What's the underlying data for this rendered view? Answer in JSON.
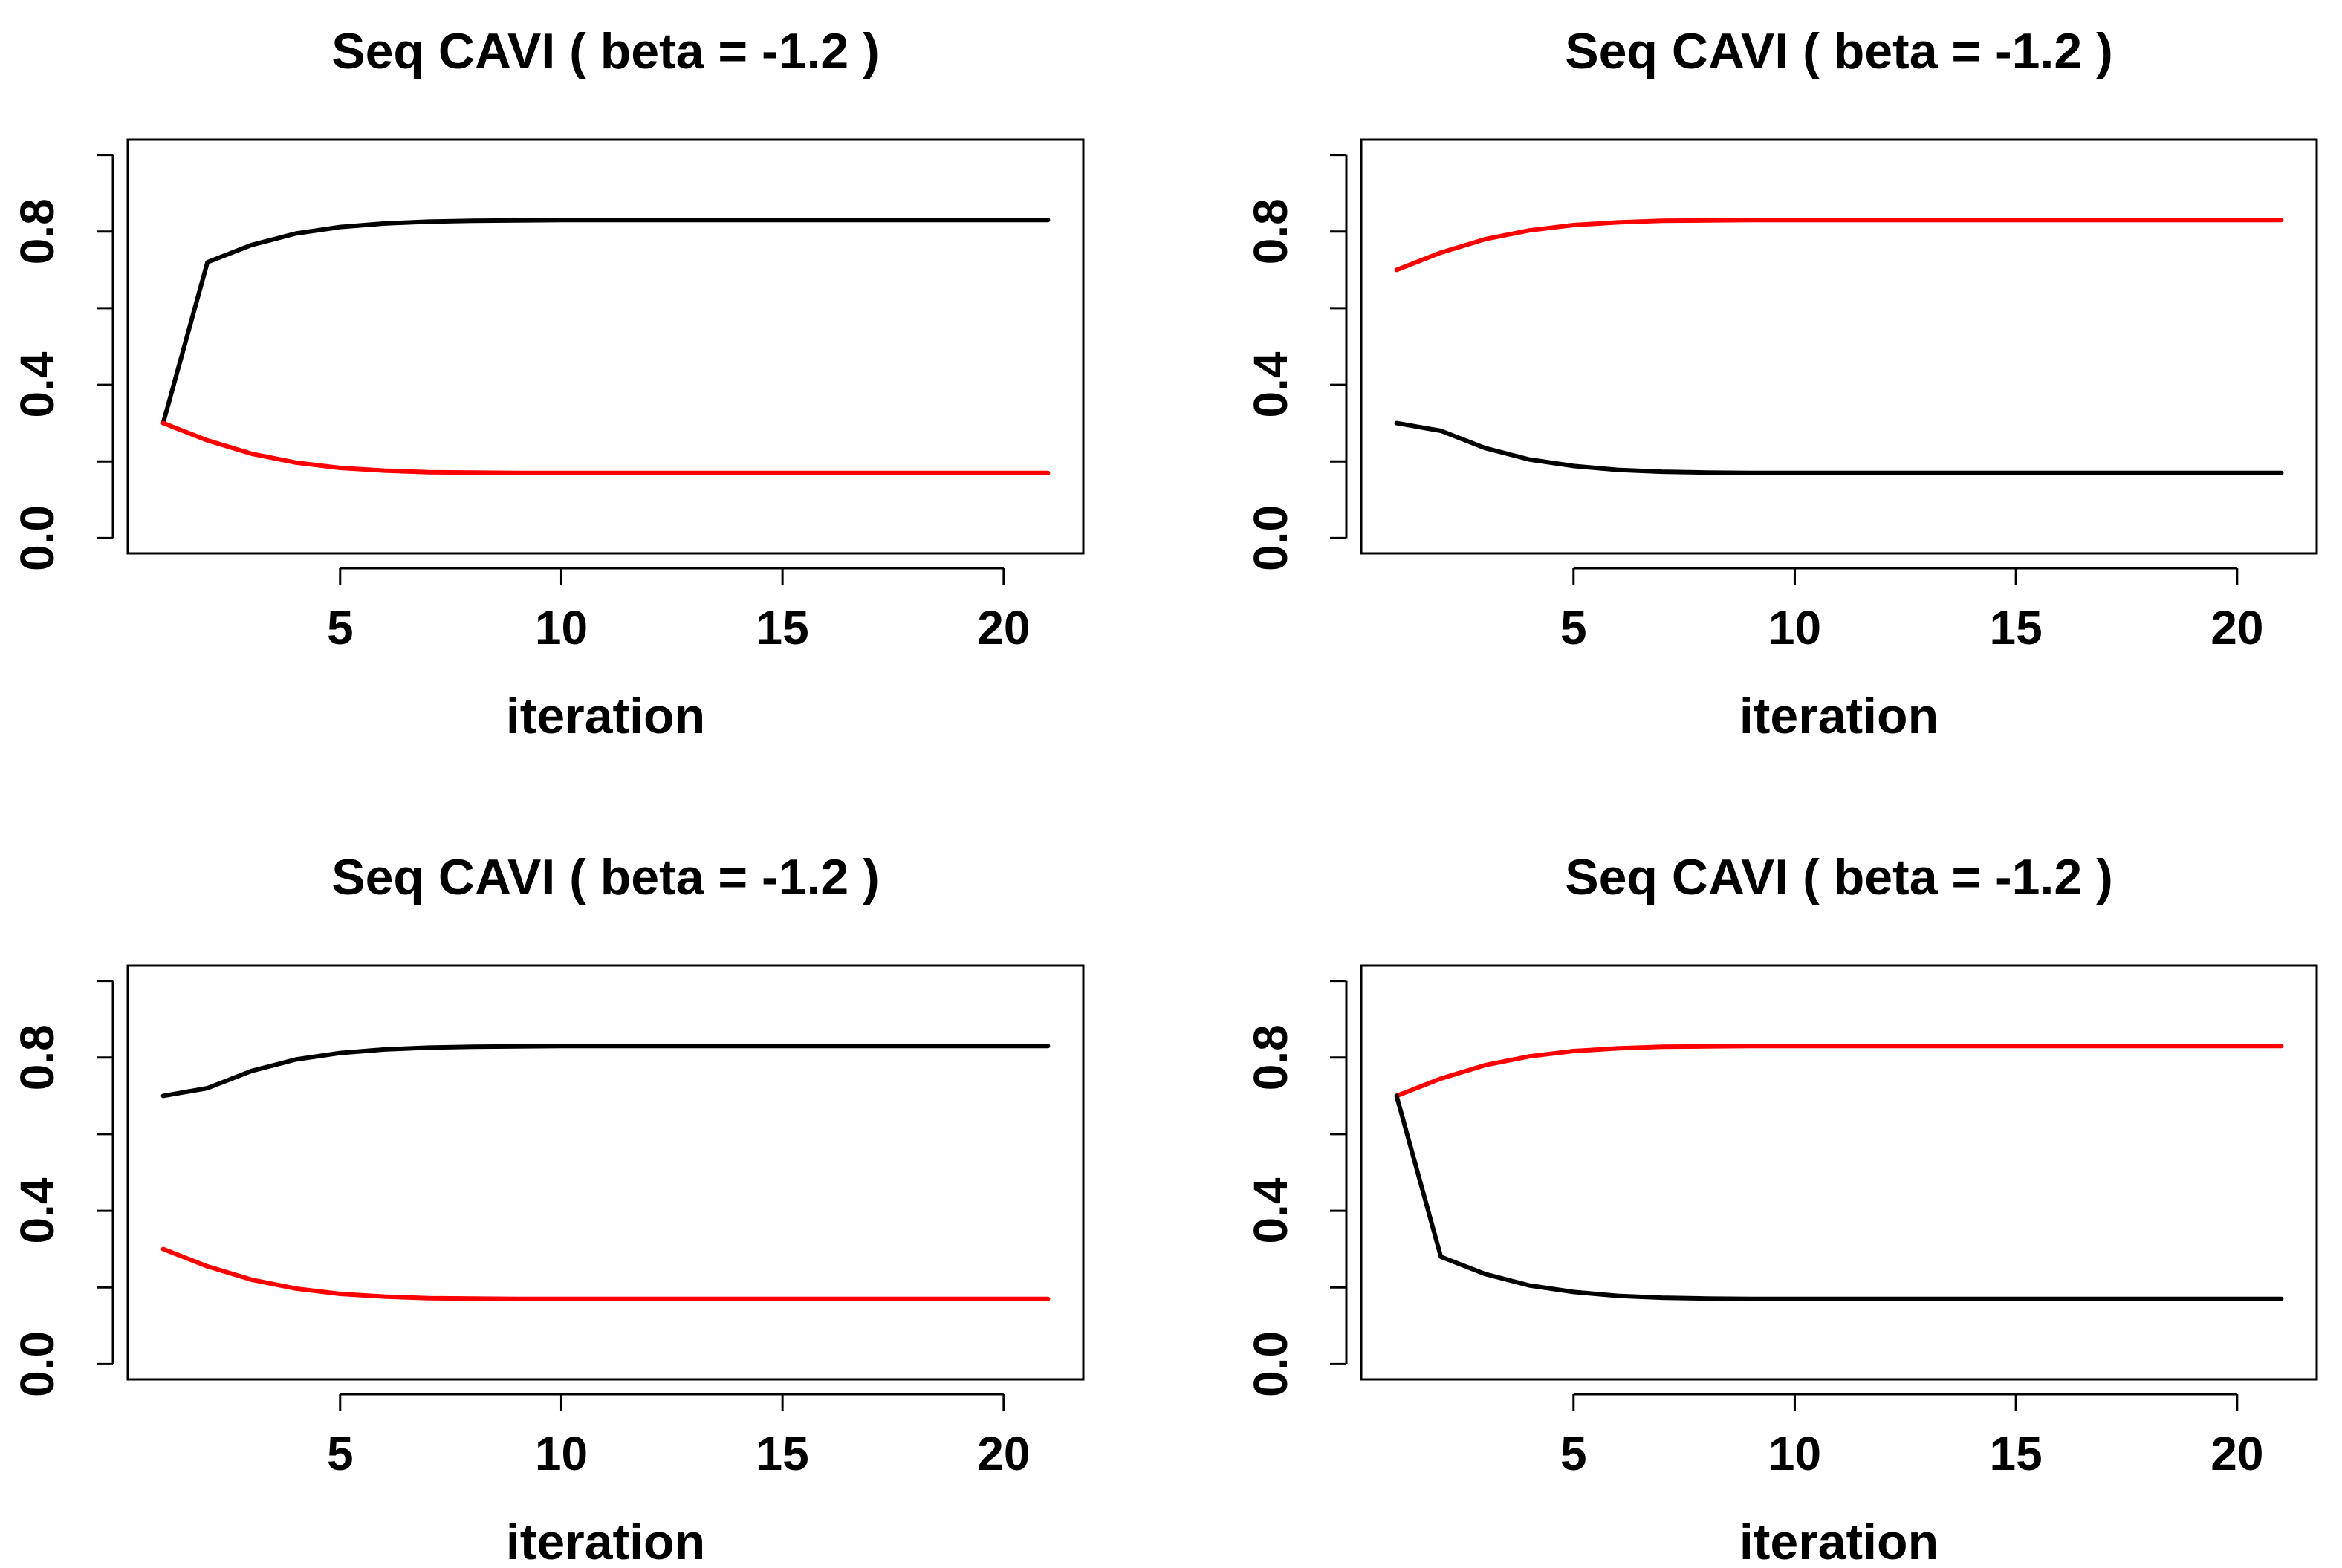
{
  "figure_layout": "2x2 grid",
  "chart_data": [
    {
      "type": "line",
      "title": "Seq CAVI ( beta =  -1.2 )",
      "xlabel": "iteration",
      "ylabel": "",
      "xlim": [
        0.2,
        21.8
      ],
      "ylim": [
        -0.04,
        1.04
      ],
      "xticks": [
        5,
        10,
        15,
        20
      ],
      "xtick_labels": [
        "5",
        "10",
        "15",
        "20"
      ],
      "yticks": [
        0.0,
        0.2,
        0.4,
        0.6,
        0.8,
        1.0
      ],
      "ytick_labels": [
        "0.0",
        "",
        "0.4",
        "",
        "0.8",
        ""
      ],
      "grid": false,
      "legend": "none",
      "x": [
        1,
        2,
        3,
        4,
        5,
        6,
        7,
        8,
        9,
        10,
        11,
        12,
        13,
        14,
        15,
        16,
        17,
        18,
        19,
        20,
        21
      ],
      "series": [
        {
          "name": "black",
          "color": "#000000",
          "values": [
            0.3,
            0.72,
            0.765,
            0.795,
            0.812,
            0.821,
            0.826,
            0.828,
            0.829,
            0.83,
            0.83,
            0.83,
            0.83,
            0.83,
            0.83,
            0.83,
            0.83,
            0.83,
            0.83,
            0.83,
            0.83
          ]
        },
        {
          "name": "red",
          "color": "#ff0000",
          "values": [
            0.3,
            0.255,
            0.22,
            0.197,
            0.183,
            0.176,
            0.172,
            0.171,
            0.17,
            0.17,
            0.17,
            0.17,
            0.17,
            0.17,
            0.17,
            0.17,
            0.17,
            0.17,
            0.17,
            0.17,
            0.17
          ]
        }
      ]
    },
    {
      "type": "line",
      "title": "Seq CAVI ( beta =  -1.2 )",
      "xlabel": "iteration",
      "ylabel": "",
      "xlim": [
        0.2,
        21.8
      ],
      "ylim": [
        -0.04,
        1.04
      ],
      "xticks": [
        5,
        10,
        15,
        20
      ],
      "xtick_labels": [
        "5",
        "10",
        "15",
        "20"
      ],
      "yticks": [
        0.0,
        0.2,
        0.4,
        0.6,
        0.8,
        1.0
      ],
      "ytick_labels": [
        "0.0",
        "",
        "0.4",
        "",
        "0.8",
        ""
      ],
      "grid": false,
      "legend": "none",
      "x": [
        1,
        2,
        3,
        4,
        5,
        6,
        7,
        8,
        9,
        10,
        11,
        12,
        13,
        14,
        15,
        16,
        17,
        18,
        19,
        20,
        21
      ],
      "series": [
        {
          "name": "red",
          "color": "#ff0000",
          "values": [
            0.7,
            0.745,
            0.78,
            0.803,
            0.817,
            0.824,
            0.828,
            0.829,
            0.83,
            0.83,
            0.83,
            0.83,
            0.83,
            0.83,
            0.83,
            0.83,
            0.83,
            0.83,
            0.83,
            0.83,
            0.83
          ]
        },
        {
          "name": "black",
          "color": "#000000",
          "values": [
            0.3,
            0.28,
            0.235,
            0.205,
            0.188,
            0.178,
            0.173,
            0.171,
            0.17,
            0.17,
            0.17,
            0.17,
            0.17,
            0.17,
            0.17,
            0.17,
            0.17,
            0.17,
            0.17,
            0.17,
            0.17
          ]
        }
      ]
    },
    {
      "type": "line",
      "title": "Seq CAVI ( beta =  -1.2 )",
      "xlabel": "iteration",
      "ylabel": "",
      "xlim": [
        0.2,
        21.8
      ],
      "ylim": [
        -0.04,
        1.04
      ],
      "xticks": [
        5,
        10,
        15,
        20
      ],
      "xtick_labels": [
        "5",
        "10",
        "15",
        "20"
      ],
      "yticks": [
        0.0,
        0.2,
        0.4,
        0.6,
        0.8,
        1.0
      ],
      "ytick_labels": [
        "0.0",
        "",
        "0.4",
        "",
        "0.8",
        ""
      ],
      "grid": false,
      "legend": "none",
      "x": [
        1,
        2,
        3,
        4,
        5,
        6,
        7,
        8,
        9,
        10,
        11,
        12,
        13,
        14,
        15,
        16,
        17,
        18,
        19,
        20,
        21
      ],
      "series": [
        {
          "name": "black",
          "color": "#000000",
          "values": [
            0.7,
            0.72,
            0.765,
            0.795,
            0.812,
            0.821,
            0.826,
            0.828,
            0.829,
            0.83,
            0.83,
            0.83,
            0.83,
            0.83,
            0.83,
            0.83,
            0.83,
            0.83,
            0.83,
            0.83,
            0.83
          ]
        },
        {
          "name": "red",
          "color": "#ff0000",
          "values": [
            0.3,
            0.255,
            0.22,
            0.197,
            0.183,
            0.176,
            0.172,
            0.171,
            0.17,
            0.17,
            0.17,
            0.17,
            0.17,
            0.17,
            0.17,
            0.17,
            0.17,
            0.17,
            0.17,
            0.17,
            0.17
          ]
        }
      ]
    },
    {
      "type": "line",
      "title": "Seq CAVI ( beta =  -1.2 )",
      "xlabel": "iteration",
      "ylabel": "",
      "xlim": [
        0.2,
        21.8
      ],
      "ylim": [
        -0.04,
        1.04
      ],
      "xticks": [
        5,
        10,
        15,
        20
      ],
      "xtick_labels": [
        "5",
        "10",
        "15",
        "20"
      ],
      "yticks": [
        0.0,
        0.2,
        0.4,
        0.6,
        0.8,
        1.0
      ],
      "ytick_labels": [
        "0.0",
        "",
        "0.4",
        "",
        "0.8",
        ""
      ],
      "grid": false,
      "legend": "none",
      "x": [
        1,
        2,
        3,
        4,
        5,
        6,
        7,
        8,
        9,
        10,
        11,
        12,
        13,
        14,
        15,
        16,
        17,
        18,
        19,
        20,
        21
      ],
      "series": [
        {
          "name": "red",
          "color": "#ff0000",
          "values": [
            0.7,
            0.745,
            0.78,
            0.803,
            0.817,
            0.824,
            0.828,
            0.829,
            0.83,
            0.83,
            0.83,
            0.83,
            0.83,
            0.83,
            0.83,
            0.83,
            0.83,
            0.83,
            0.83,
            0.83,
            0.83
          ]
        },
        {
          "name": "black",
          "color": "#000000",
          "values": [
            0.7,
            0.28,
            0.235,
            0.205,
            0.188,
            0.178,
            0.173,
            0.171,
            0.17,
            0.17,
            0.17,
            0.17,
            0.17,
            0.17,
            0.17,
            0.17,
            0.17,
            0.17,
            0.17,
            0.17,
            0.17
          ]
        }
      ]
    }
  ]
}
